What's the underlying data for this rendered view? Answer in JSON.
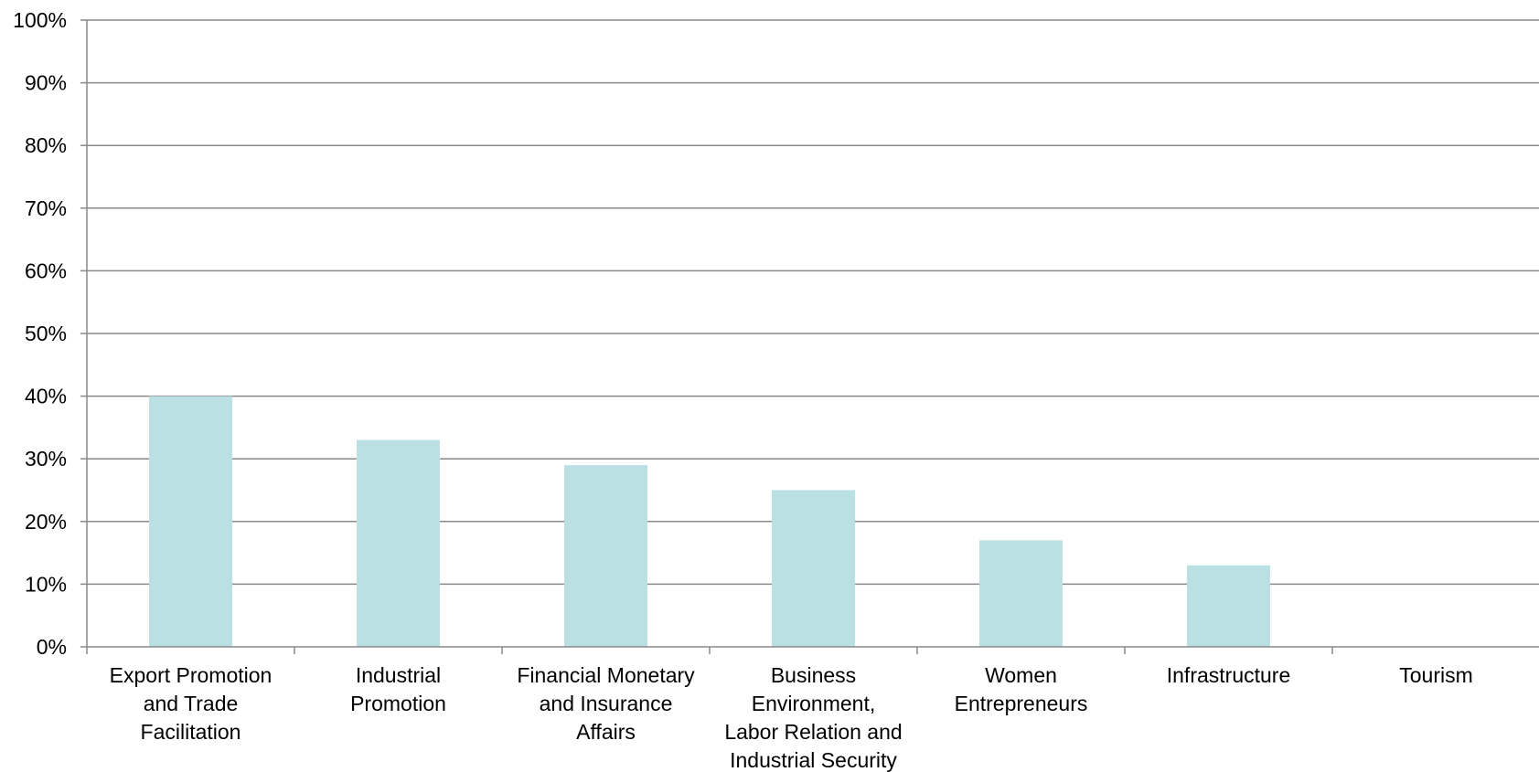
{
  "chart_data": {
    "type": "bar",
    "categories": [
      "Export Promotion and Trade Facilitation",
      "Industrial Promotion",
      "Financial Monetary and Insurance Affairs",
      "Business Environment, Labor Relation and Industrial Security",
      "Women Entrepreneurs",
      "Infrastructure",
      "Tourism"
    ],
    "category_label_lines": [
      [
        "Export Promotion",
        "and Trade",
        "Facilitation"
      ],
      [
        "Industrial",
        "Promotion"
      ],
      [
        "Financial Monetary",
        "and Insurance",
        "Affairs"
      ],
      [
        "Business",
        "Environment,",
        "Labor Relation and",
        "Industrial Security"
      ],
      [
        "Women",
        "Entrepreneurs"
      ],
      [
        "Infrastructure"
      ],
      [
        "Tourism"
      ]
    ],
    "values": [
      40,
      33,
      29,
      25,
      17,
      13,
      0
    ],
    "ylim": [
      0,
      100
    ],
    "yticks": [
      0,
      10,
      20,
      30,
      40,
      50,
      60,
      70,
      80,
      90,
      100
    ],
    "ytick_labels": [
      "0%",
      "10%",
      "20%",
      "30%",
      "40%",
      "50%",
      "60%",
      "70%",
      "80%",
      "90%",
      "100%"
    ],
    "title": "",
    "xlabel": "",
    "ylabel": "",
    "grid": true,
    "legend": "none",
    "colors": {
      "bar": "#bbe0e3",
      "grid": "#898989",
      "axis": "#898989",
      "text": "#000000"
    }
  }
}
